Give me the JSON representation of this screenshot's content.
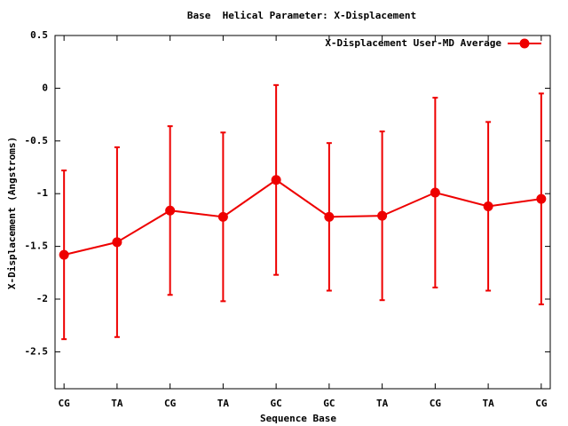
{
  "chart_data": {
    "type": "errorline",
    "title": "Base  Helical Parameter: X-Displacement",
    "x_label": "Sequence Base",
    "y_label": "X-Displacement (Angstroms)",
    "categories": [
      "CG",
      "TA",
      "CG",
      "TA",
      "GC",
      "GC",
      "TA",
      "CG",
      "TA",
      "CG"
    ],
    "series": [
      {
        "name": "X-Displacement User-MD Average",
        "color": "#ee0000",
        "values": [
          -1.58,
          -1.46,
          -1.16,
          -1.22,
          -0.87,
          -1.22,
          -1.21,
          -0.99,
          -1.12,
          -1.05
        ],
        "errors": [
          0.8,
          0.9,
          0.8,
          0.8,
          0.9,
          0.7,
          0.8,
          0.9,
          0.8,
          1.0
        ]
      }
    ],
    "ylim": [
      -2.85,
      0.5
    ],
    "yticks": [
      0.5,
      0,
      -0.5,
      -1,
      -1.5,
      -2,
      -2.5
    ],
    "grid": false,
    "legend": "top-right"
  }
}
